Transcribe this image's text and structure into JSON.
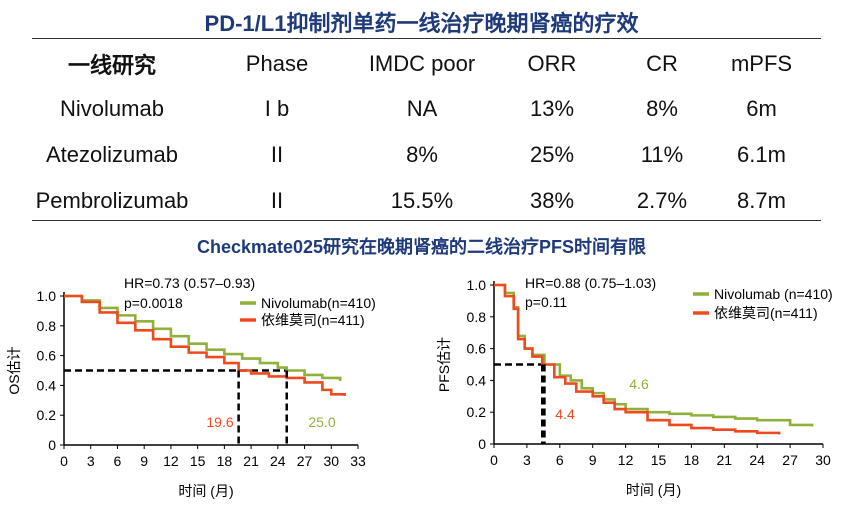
{
  "title": "PD-1/L1抑制剂单药一线治疗晚期肾癌的疗效",
  "subtitle": "Checkmate025研究在晚期肾癌的二线治疗PFS时间有限",
  "table": {
    "headers": [
      "一线研究",
      "Phase",
      "IMDC poor",
      "ORR",
      "CR",
      "mPFS"
    ],
    "rows": [
      [
        "Nivolumab",
        "I b",
        "NA",
        "13%",
        "8%",
        "6m"
      ],
      [
        "Atezolizumab",
        "II",
        "8%",
        "25%",
        "11%",
        "6.1m"
      ],
      [
        "Pembrolizumab",
        "II",
        "15.5%",
        "38%",
        "2.7%",
        "8.7m"
      ]
    ]
  },
  "colors": {
    "title": "#1f3a7a",
    "nivolumab": "#8fb13b",
    "everolimus": "#ee4a1e",
    "axis": "#000000"
  },
  "chart_data": [
    {
      "type": "line",
      "name": "os",
      "ylabel": "OS估计",
      "xlabel": "时间 (月)",
      "xlim": [
        0,
        33
      ],
      "ylim": [
        0,
        1.0
      ],
      "xticks": [
        0,
        3,
        6,
        9,
        12,
        15,
        18,
        21,
        24,
        27,
        30,
        33
      ],
      "yticks": [
        "0",
        "0.2",
        "0.4",
        "0.6",
        "0.8",
        "1.0"
      ],
      "hr": "HR=0.73 (0.57–0.93)",
      "p": "p=0.0018",
      "median_y": 0.5,
      "series": [
        {
          "name": "Nivolumab(n=410)",
          "color": "#8fb13b",
          "median": 25.0,
          "median_label": "25.0",
          "points": [
            [
              0,
              1.0
            ],
            [
              2,
              0.97
            ],
            [
              4,
              0.92
            ],
            [
              6,
              0.87
            ],
            [
              8,
              0.83
            ],
            [
              10,
              0.78
            ],
            [
              12,
              0.73
            ],
            [
              14,
              0.68
            ],
            [
              16,
              0.64
            ],
            [
              18,
              0.61
            ],
            [
              20,
              0.58
            ],
            [
              22,
              0.55
            ],
            [
              24,
              0.52
            ],
            [
              25,
              0.5
            ],
            [
              27,
              0.47
            ],
            [
              29,
              0.45
            ],
            [
              31,
              0.43
            ]
          ]
        },
        {
          "name": "依维莫司(n=411)",
          "color": "#ee4a1e",
          "median": 19.6,
          "median_label": "19.6",
          "points": [
            [
              0,
              1.0
            ],
            [
              2,
              0.96
            ],
            [
              4,
              0.89
            ],
            [
              6,
              0.82
            ],
            [
              8,
              0.77
            ],
            [
              10,
              0.71
            ],
            [
              12,
              0.66
            ],
            [
              14,
              0.62
            ],
            [
              16,
              0.59
            ],
            [
              18,
              0.55
            ],
            [
              19.6,
              0.5
            ],
            [
              21,
              0.48
            ],
            [
              23,
              0.46
            ],
            [
              25,
              0.45
            ],
            [
              27,
              0.42
            ],
            [
              29,
              0.37
            ],
            [
              30,
              0.34
            ],
            [
              31.5,
              0.33
            ]
          ]
        }
      ]
    },
    {
      "type": "line",
      "name": "pfs",
      "ylabel": "PFS估计",
      "xlabel": "时间 (月)",
      "xlim": [
        0,
        30
      ],
      "ylim": [
        0,
        1.0
      ],
      "xticks": [
        0,
        3,
        6,
        9,
        12,
        15,
        18,
        21,
        24,
        27,
        30
      ],
      "yticks": [
        "0",
        "0.2",
        "0.4",
        "0.6",
        "0.8",
        "1.0"
      ],
      "hr": "HR=0.88 (0.75–1.03)",
      "p": "p=0.11",
      "median_y": 0.5,
      "series": [
        {
          "name": "Nivolumab (n=410)",
          "color": "#8fb13b",
          "median": 4.6,
          "median_label": "4.6",
          "points": [
            [
              0,
              1.0
            ],
            [
              1,
              0.95
            ],
            [
              1.8,
              0.86
            ],
            [
              2.2,
              0.68
            ],
            [
              2.8,
              0.6
            ],
            [
              3.5,
              0.56
            ],
            [
              4.6,
              0.5
            ],
            [
              6,
              0.43
            ],
            [
              7,
              0.4
            ],
            [
              8,
              0.35
            ],
            [
              9,
              0.32
            ],
            [
              10,
              0.28
            ],
            [
              11,
              0.25
            ],
            [
              12,
              0.22
            ],
            [
              14,
              0.2
            ],
            [
              16,
              0.19
            ],
            [
              18,
              0.18
            ],
            [
              20,
              0.17
            ],
            [
              22,
              0.16
            ],
            [
              24,
              0.15
            ],
            [
              27,
              0.12
            ],
            [
              29,
              0.11
            ]
          ]
        },
        {
          "name": "依维莫司(n=411)",
          "color": "#ee4a1e",
          "median": 4.4,
          "median_label": "4.4",
          "points": [
            [
              0,
              1.0
            ],
            [
              1,
              0.93
            ],
            [
              1.8,
              0.85
            ],
            [
              2.2,
              0.66
            ],
            [
              2.8,
              0.6
            ],
            [
              3.5,
              0.55
            ],
            [
              4.4,
              0.5
            ],
            [
              5.5,
              0.42
            ],
            [
              6.5,
              0.38
            ],
            [
              7.5,
              0.33
            ],
            [
              9,
              0.3
            ],
            [
              10,
              0.26
            ],
            [
              11,
              0.22
            ],
            [
              12,
              0.2
            ],
            [
              14,
              0.15
            ],
            [
              16,
              0.12
            ],
            [
              18,
              0.1
            ],
            [
              20,
              0.09
            ],
            [
              22,
              0.08
            ],
            [
              24,
              0.07
            ],
            [
              26,
              0.06
            ]
          ]
        }
      ]
    }
  ]
}
